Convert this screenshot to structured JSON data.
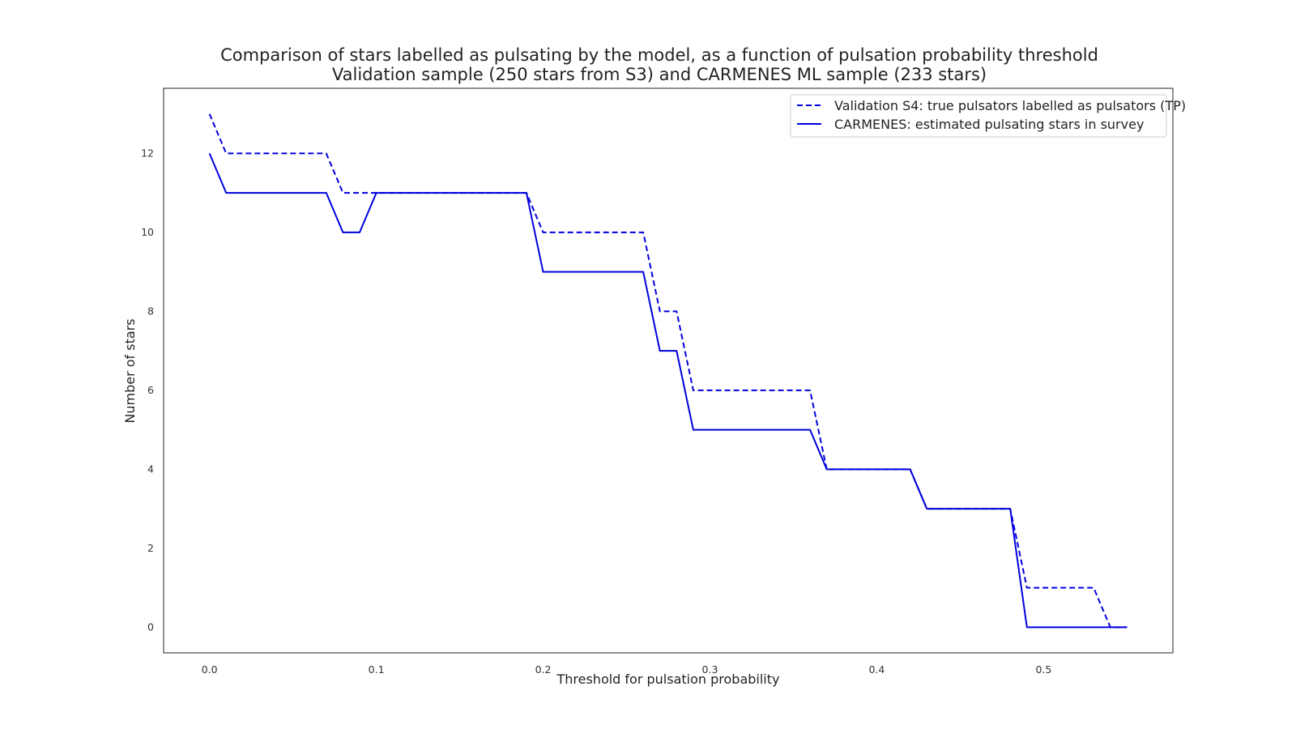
{
  "chart_data": {
    "type": "line",
    "title": "Comparison of stars labelled as pulsating by the model, as a function of pulsation probability threshold",
    "subtitle": "Validation sample (250 stars from S3) and CARMENES ML sample (233 stars)",
    "xlabel": "Threshold for pulsation probability",
    "ylabel": "Number of stars",
    "xlim": [
      -0.0275,
      0.5775
    ],
    "ylim": [
      -0.65,
      13.65
    ],
    "x_ticks": [
      0.0,
      0.1,
      0.2,
      0.3,
      0.4,
      0.5
    ],
    "x_tick_labels": [
      "0.0",
      "0.1",
      "0.2",
      "0.3",
      "0.4",
      "0.5"
    ],
    "y_ticks": [
      0,
      2,
      4,
      6,
      8,
      10,
      12
    ],
    "y_tick_labels": [
      "0",
      "2",
      "4",
      "6",
      "8",
      "10",
      "12"
    ],
    "grid": false,
    "legend_position": "top-right",
    "x": [
      0.0,
      0.01,
      0.02,
      0.03,
      0.04,
      0.05,
      0.06,
      0.07,
      0.08,
      0.09,
      0.1,
      0.11,
      0.12,
      0.13,
      0.14,
      0.15,
      0.16,
      0.17,
      0.18,
      0.19,
      0.2,
      0.21,
      0.22,
      0.23,
      0.24,
      0.25,
      0.26,
      0.27,
      0.28,
      0.29,
      0.3,
      0.31,
      0.32,
      0.33,
      0.34,
      0.35,
      0.36,
      0.37,
      0.38,
      0.39,
      0.4,
      0.41,
      0.42,
      0.43,
      0.44,
      0.45,
      0.46,
      0.47,
      0.48,
      0.49,
      0.5,
      0.51,
      0.52,
      0.53,
      0.54,
      0.55
    ],
    "series": [
      {
        "name": "Validation S4: true pulsators labelled as pulsators (TP)",
        "style": "dashed",
        "color": "#0000dd",
        "values": [
          13,
          12,
          12,
          12,
          12,
          12,
          12,
          12,
          11,
          11,
          11,
          11,
          11,
          11,
          11,
          11,
          11,
          11,
          11,
          11,
          10,
          10,
          10,
          10,
          10,
          10,
          10,
          8,
          8,
          6,
          6,
          6,
          6,
          6,
          6,
          6,
          6,
          4,
          4,
          4,
          4,
          4,
          4,
          3,
          3,
          3,
          3,
          3,
          3,
          1,
          1,
          1,
          1,
          1,
          0,
          0
        ]
      },
      {
        "name": "CARMENES: estimated pulsating stars in survey",
        "style": "solid",
        "color": "#0000dd",
        "values": [
          12,
          11,
          11,
          11,
          11,
          11,
          11,
          11,
          10,
          10,
          11,
          11,
          11,
          11,
          11,
          11,
          11,
          11,
          11,
          11,
          9,
          9,
          9,
          9,
          9,
          9,
          9,
          7,
          7,
          5,
          5,
          5,
          5,
          5,
          5,
          5,
          5,
          4,
          4,
          4,
          4,
          4,
          4,
          3,
          3,
          3,
          3,
          3,
          3,
          0,
          0,
          0,
          0,
          0,
          0,
          0
        ]
      }
    ]
  }
}
